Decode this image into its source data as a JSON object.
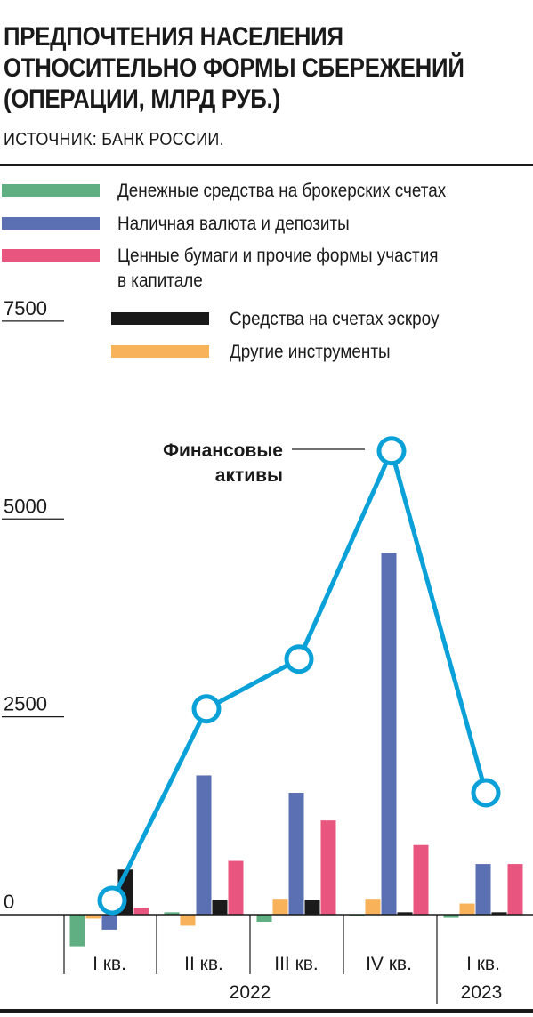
{
  "header": {
    "title_line1": "ПРЕДПОЧТЕНИЯ НАСЕЛЕНИЯ",
    "title_line2": "ОТНОСИТЕЛЬНО ФОРМЫ СБЕРЕЖЕНИЙ",
    "title_line3": "(ОПЕРАЦИИ, МЛРД РУБ.)",
    "source": "ИСТОЧНИК: БАНК РОССИИ."
  },
  "colors": {
    "brokerage": "#5faf82",
    "currency_deposits": "#5b6fb3",
    "securities": "#e8567f",
    "escrow": "#1a1a1a",
    "other": "#f7b25a",
    "financial_assets": "#0aa0d8"
  },
  "chart_data": {
    "type": "bar",
    "categories": [
      "I кв.",
      "II кв.",
      "III кв.",
      "IV кв.",
      "I кв."
    ],
    "year_labels": [
      "2022",
      "2023"
    ],
    "ylim": [
      -500,
      7500
    ],
    "yticks": [
      0,
      2500,
      5000,
      7500
    ],
    "ytick_labels": [
      "0",
      "2500",
      "5000",
      "7500"
    ],
    "series": [
      {
        "name": "Денежные средства на брокерских счетах",
        "color_key": "brokerage",
        "values": [
          -400,
          30,
          -90,
          -10,
          -40
        ]
      },
      {
        "name": "Другие инструменты",
        "color_key": "other",
        "values": [
          -50,
          -140,
          200,
          200,
          140
        ]
      },
      {
        "name": "Наличная валюта и депозиты",
        "color_key": "currency_deposits",
        "values": [
          -190,
          1760,
          1540,
          4570,
          640
        ]
      },
      {
        "name": "Средства на счетах эскроу",
        "color_key": "escrow",
        "values": [
          570,
          190,
          190,
          30,
          30
        ]
      },
      {
        "name": "Ценные бумаги и прочие формы участия в капитале",
        "color_key": "securities",
        "values": [
          90,
          680,
          1190,
          880,
          640
        ]
      }
    ],
    "line": {
      "name": "Финансовые активы",
      "color_key": "financial_assets",
      "values": [
        180,
        2600,
        3230,
        5860,
        1540
      ]
    }
  },
  "legend": [
    {
      "label": "Денежные средства на брокерских счетах",
      "color_key": "brokerage"
    },
    {
      "label": "Наличная валюта и депозиты",
      "color_key": "currency_deposits"
    },
    {
      "label": "Ценные бумаги и прочие формы участия",
      "label2": "в капитале",
      "color_key": "securities"
    },
    {
      "label": "Средства на счетах эскроу",
      "color_key": "escrow"
    },
    {
      "label": "Другие инструменты",
      "color_key": "other"
    }
  ],
  "annotation": {
    "line1": "Финансовые",
    "line2": "активы"
  }
}
